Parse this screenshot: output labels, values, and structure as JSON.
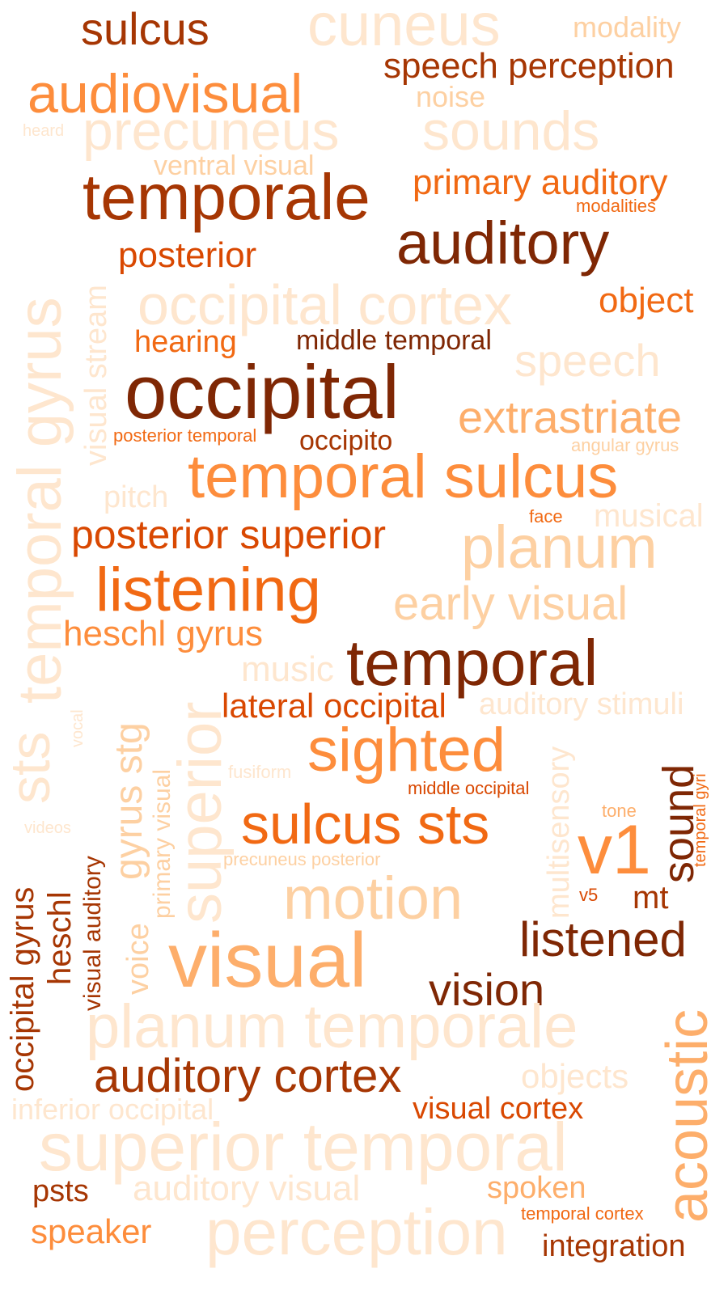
{
  "palette": {
    "c1": "#7f2704",
    "c2": "#a63603",
    "c3": "#d94801",
    "c4": "#f16913",
    "c5": "#fd8d3c",
    "c6": "#fdae6b",
    "c7": "#fdd0a2",
    "c8": "#fee6ce"
  },
  "words": [
    {
      "text": "sulcus",
      "color": "#a63603"
    },
    {
      "text": "cuneus",
      "color": "#fee6ce"
    },
    {
      "text": "modality",
      "color": "#fdd0a2"
    },
    {
      "text": "speech perception",
      "color": "#a63603"
    },
    {
      "text": "audiovisual",
      "color": "#fd8d3c"
    },
    {
      "text": "noise",
      "color": "#fdd0a2"
    },
    {
      "text": "heard",
      "color": "#fee6ce"
    },
    {
      "text": "precuneus",
      "color": "#fee6ce"
    },
    {
      "text": "sounds",
      "color": "#fee6ce"
    },
    {
      "text": "ventral visual",
      "color": "#fdd0a2"
    },
    {
      "text": "temporale",
      "color": "#a63603"
    },
    {
      "text": "primary auditory",
      "color": "#f16913"
    },
    {
      "text": "modalities",
      "color": "#f16913"
    },
    {
      "text": "auditory",
      "color": "#7f2704"
    },
    {
      "text": "posterior",
      "color": "#d94801"
    },
    {
      "text": "occipital cortex",
      "color": "#fee6ce"
    },
    {
      "text": "object",
      "color": "#f16913"
    },
    {
      "text": "hearing",
      "color": "#f16913"
    },
    {
      "text": "middle temporal",
      "color": "#7f2704"
    },
    {
      "text": "speech",
      "color": "#fee6ce"
    },
    {
      "text": "occipital",
      "color": "#7f2704"
    },
    {
      "text": "extrastriate",
      "color": "#fdae6b"
    },
    {
      "text": "posterior temporal",
      "color": "#f16913"
    },
    {
      "text": "occipito",
      "color": "#a63603"
    },
    {
      "text": "angular gyrus",
      "color": "#fdd0a2"
    },
    {
      "text": "temporal sulcus",
      "color": "#fd8d3c"
    },
    {
      "text": "pitch",
      "color": "#fee6ce"
    },
    {
      "text": "face",
      "color": "#f16913"
    },
    {
      "text": "musical",
      "color": "#fee6ce"
    },
    {
      "text": "posterior superior",
      "color": "#d94801"
    },
    {
      "text": "planum",
      "color": "#fdd0a2"
    },
    {
      "text": "listening",
      "color": "#f16913"
    },
    {
      "text": "early visual",
      "color": "#fdd0a2"
    },
    {
      "text": "heschl gyrus",
      "color": "#fd8d3c"
    },
    {
      "text": "music",
      "color": "#fee6ce"
    },
    {
      "text": "temporal",
      "color": "#7f2704"
    },
    {
      "text": "lateral occipital",
      "color": "#d94801"
    },
    {
      "text": "auditory stimuli",
      "color": "#fee6ce"
    },
    {
      "text": "sighted",
      "color": "#fd8d3c"
    },
    {
      "text": "fusiform",
      "color": "#fee6ce"
    },
    {
      "text": "middle occipital",
      "color": "#d94801"
    },
    {
      "text": "sulcus sts",
      "color": "#f16913"
    },
    {
      "text": "tone",
      "color": "#fdae6b"
    },
    {
      "text": "videos",
      "color": "#fee6ce"
    },
    {
      "text": "v1",
      "color": "#fd8d3c"
    },
    {
      "text": "precuneus posterior",
      "color": "#fdd0a2"
    },
    {
      "text": "v5",
      "color": "#d94801"
    },
    {
      "text": "mt",
      "color": "#a63603"
    },
    {
      "text": "motion",
      "color": "#fdd0a2"
    },
    {
      "text": "listened",
      "color": "#7f2704"
    },
    {
      "text": "visual",
      "color": "#fdae6b"
    },
    {
      "text": "vision",
      "color": "#7f2704"
    },
    {
      "text": "planum temporale",
      "color": "#fee6ce"
    },
    {
      "text": "auditory cortex",
      "color": "#a63603"
    },
    {
      "text": "objects",
      "color": "#fee6ce"
    },
    {
      "text": "inferior occipital",
      "color": "#fee6ce"
    },
    {
      "text": "visual cortex",
      "color": "#d94801"
    },
    {
      "text": "superior temporal",
      "color": "#fee6ce"
    },
    {
      "text": "psts",
      "color": "#a63603"
    },
    {
      "text": "auditory visual",
      "color": "#fee6ce"
    },
    {
      "text": "spoken",
      "color": "#fdae6b"
    },
    {
      "text": "temporal cortex",
      "color": "#f16913"
    },
    {
      "text": "speaker",
      "color": "#fd8d3c"
    },
    {
      "text": "perception",
      "color": "#fee6ce"
    },
    {
      "text": "integration",
      "color": "#a63603"
    },
    {
      "text": "temporal gyrus",
      "color": "#fee6ce"
    },
    {
      "text": "visual stream",
      "color": "#fee6ce"
    },
    {
      "text": "superior",
      "color": "#fee6ce"
    },
    {
      "text": "sts",
      "color": "#fee6ce"
    },
    {
      "text": "vocal",
      "color": "#fee6ce"
    },
    {
      "text": "gyrus stg",
      "color": "#fdd0a2"
    },
    {
      "text": "primary visual",
      "color": "#fdd0a2"
    },
    {
      "text": "visual auditory",
      "color": "#a63603"
    },
    {
      "text": "voice",
      "color": "#fdd0a2"
    },
    {
      "text": "heschl",
      "color": "#a63603"
    },
    {
      "text": "occipital gyrus",
      "color": "#a63603"
    },
    {
      "text": "multisensory",
      "color": "#fee6ce"
    },
    {
      "text": "sound",
      "color": "#7f2704"
    },
    {
      "text": "temporal gyri",
      "color": "#f16913"
    },
    {
      "text": "acoustic",
      "color": "#fdae6b"
    }
  ]
}
